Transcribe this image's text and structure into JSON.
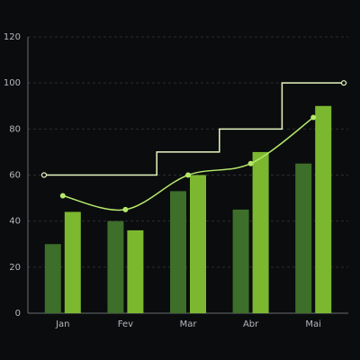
{
  "chart_data": {
    "type": "bar",
    "categories": [
      "Jan",
      "Fev",
      "Mar",
      "Abr",
      "Mai"
    ],
    "series": [
      {
        "type": "bar",
        "color": "#3d6e2a",
        "values": [
          30,
          40,
          53,
          45,
          65
        ]
      },
      {
        "type": "bar",
        "color": "#7cb82f",
        "values": [
          44,
          36,
          60,
          70,
          90
        ]
      },
      {
        "type": "smooth",
        "color": "#b5e86a",
        "values": [
          51,
          45,
          60,
          65,
          85
        ]
      },
      {
        "type": "step",
        "color": "#e6f7c0",
        "values": [
          60,
          60,
          70,
          80,
          100
        ]
      }
    ],
    "ylim": [
      0,
      120
    ],
    "yticks": [
      0,
      20,
      40,
      60,
      80,
      100,
      120
    ],
    "grid": true
  }
}
